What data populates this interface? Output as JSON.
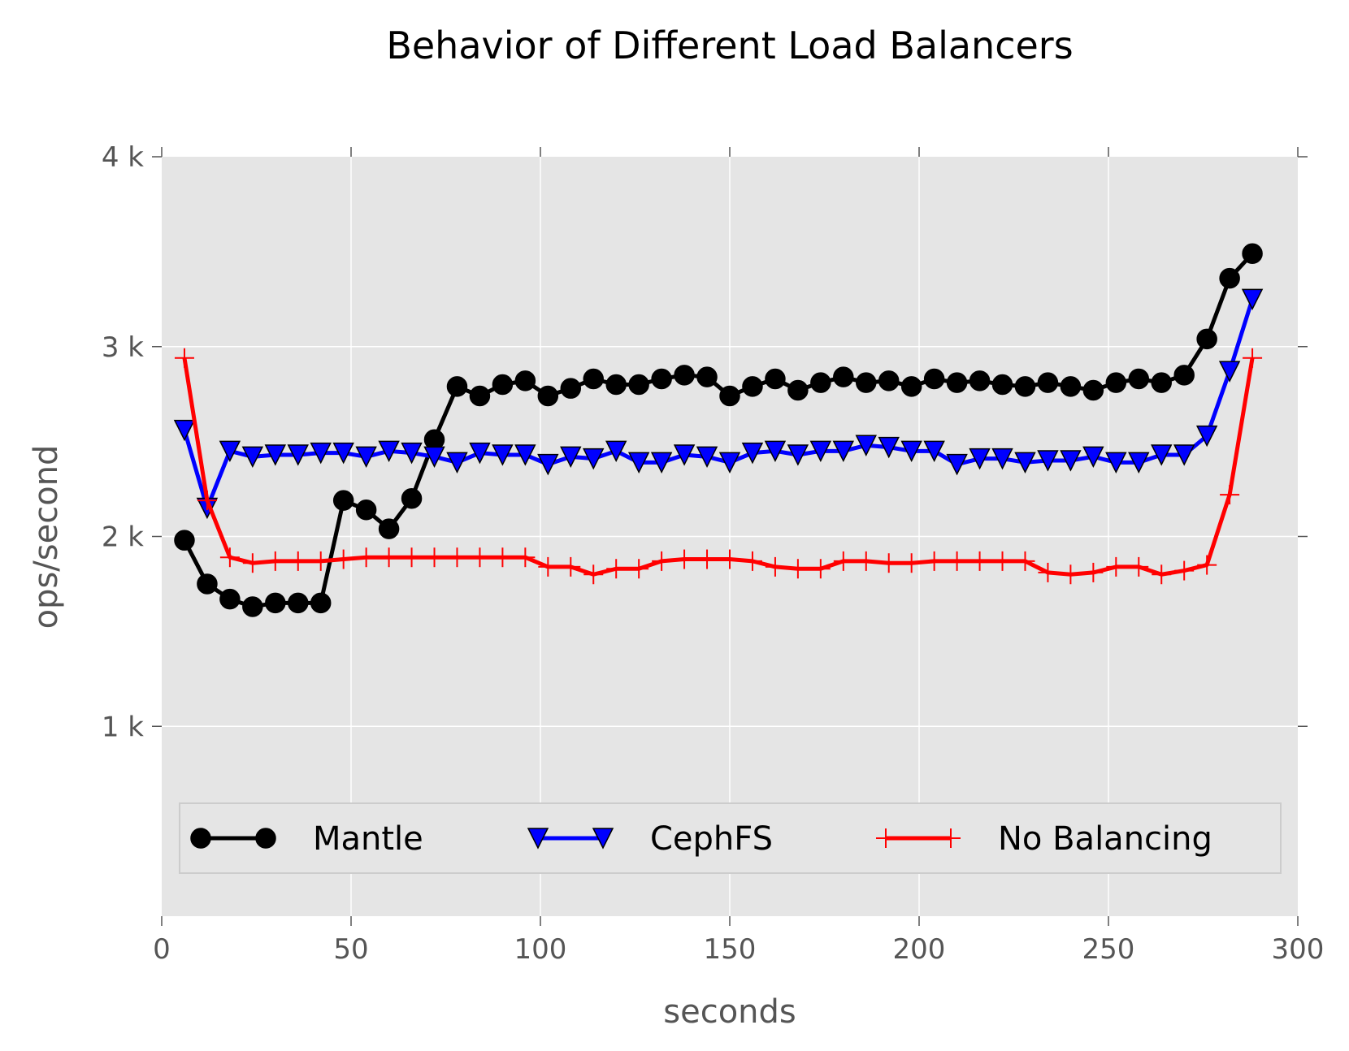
{
  "chart_data": {
    "type": "line",
    "title": "Behavior of Different Load Balancers",
    "xlabel": "seconds",
    "ylabel": "ops/second",
    "xlim": [
      0,
      300
    ],
    "ylim": [
      0,
      4000
    ],
    "x_ticks": [
      0,
      50,
      100,
      150,
      200,
      250,
      300
    ],
    "x_tick_labels": [
      "0",
      "50",
      "100",
      "150",
      "200",
      "250",
      "300"
    ],
    "y_ticks": [
      1000,
      2000,
      3000,
      4000
    ],
    "y_tick_labels": [
      "1 k",
      "2 k",
      "3 k",
      "4 k"
    ],
    "grid": true,
    "background": "#e5e5e5",
    "legend_position": "lower center",
    "x": [
      6,
      12,
      18,
      24,
      30,
      36,
      42,
      48,
      54,
      60,
      66,
      72,
      78,
      84,
      90,
      96,
      102,
      108,
      114,
      120,
      126,
      132,
      138,
      144,
      150,
      156,
      162,
      168,
      174,
      180,
      186,
      192,
      198,
      204,
      210,
      216,
      222,
      228,
      234,
      240,
      246,
      252,
      258,
      264,
      270,
      276,
      282,
      288
    ],
    "series": [
      {
        "name": "Mantle",
        "color": "#000000",
        "marker": "circle",
        "values": [
          1980,
          1750,
          1670,
          1630,
          1650,
          1650,
          1650,
          2190,
          2140,
          2040,
          2200,
          2510,
          2790,
          2740,
          2800,
          2820,
          2740,
          2780,
          2830,
          2800,
          2800,
          2830,
          2850,
          2840,
          2740,
          2790,
          2830,
          2770,
          2810,
          2840,
          2810,
          2820,
          2790,
          2830,
          2810,
          2820,
          2800,
          2790,
          2810,
          2790,
          2770,
          2810,
          2830,
          2810,
          2850,
          3040,
          3360,
          3490
        ]
      },
      {
        "name": "CephFS",
        "color": "#0000ff",
        "marker": "triangle-down",
        "values": [
          2560,
          2150,
          2450,
          2420,
          2430,
          2430,
          2440,
          2440,
          2420,
          2450,
          2440,
          2420,
          2390,
          2440,
          2430,
          2430,
          2380,
          2420,
          2410,
          2450,
          2390,
          2390,
          2430,
          2420,
          2390,
          2440,
          2450,
          2430,
          2450,
          2450,
          2480,
          2470,
          2450,
          2450,
          2380,
          2410,
          2410,
          2390,
          2400,
          2400,
          2420,
          2390,
          2390,
          2430,
          2430,
          2530,
          2870,
          3250
        ]
      },
      {
        "name": "No Balancing",
        "color": "#ff0000",
        "marker": "plus",
        "values": [
          2940,
          2190,
          1890,
          1860,
          1870,
          1870,
          1870,
          1880,
          1890,
          1890,
          1890,
          1890,
          1890,
          1890,
          1890,
          1890,
          1840,
          1840,
          1800,
          1830,
          1830,
          1870,
          1880,
          1880,
          1880,
          1870,
          1840,
          1830,
          1830,
          1870,
          1870,
          1860,
          1860,
          1870,
          1870,
          1870,
          1870,
          1870,
          1810,
          1800,
          1810,
          1840,
          1840,
          1800,
          1820,
          1850,
          2220,
          2940
        ]
      }
    ]
  }
}
